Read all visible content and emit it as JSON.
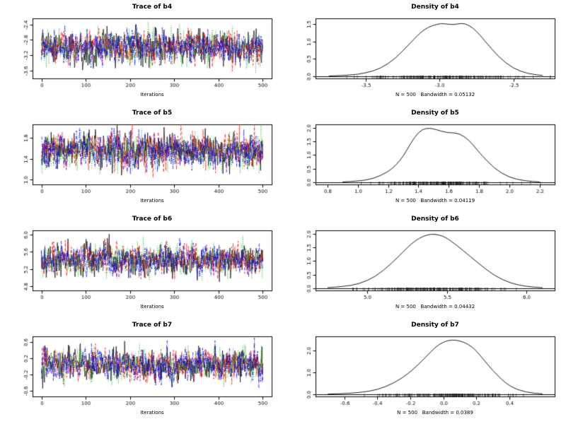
{
  "figure": {
    "background": "#ffffff",
    "foreground": "#000000",
    "description": "MCMC trace and density diagnostic plots for parameters b4-b7"
  },
  "chart_data": [
    {
      "type": "line",
      "kind": "trace",
      "parameter": "b4",
      "title": "Trace of b4",
      "xlabel": "Iterations",
      "xlim": [
        0,
        500
      ],
      "ylim": [
        -3.75,
        -2.3
      ],
      "xticks": [
        0,
        100,
        200,
        300,
        400,
        500
      ],
      "xtick_labels": [
        "0",
        "100",
        "200",
        "300",
        "400",
        "500"
      ],
      "yticks": [
        -3.6,
        -3.2,
        -2.8,
        -2.4
      ],
      "ytick_labels": [
        "-3.6",
        "-3.2",
        "-2.8",
        "-2.4"
      ],
      "n_iterations": 500,
      "series_mean": -3.0,
      "series_sd": 0.22,
      "chains": [
        {
          "color": "#000000",
          "dash": "solid"
        },
        {
          "color": "#ff0000",
          "dash": "dashed"
        },
        {
          "color": "#00b400",
          "dash": "dotted"
        },
        {
          "color": "#0000ff",
          "dash": "dotdash"
        }
      ]
    },
    {
      "type": "line",
      "kind": "density",
      "parameter": "b4",
      "title": "Density of b4",
      "footer": "N = 500   Bandwidth = 0.05132",
      "xlim": [
        -3.78,
        -2.28
      ],
      "ylim": [
        0,
        1.6
      ],
      "xticks": [
        -3.5,
        -3.0,
        -2.5
      ],
      "xtick_labels": [
        "-3.5",
        "-3.0",
        "-2.5"
      ],
      "yticks": [
        0,
        0.5,
        1.0,
        1.5
      ],
      "ytick_labels": [
        "0.0",
        "0.5",
        "1.0",
        "1.5"
      ],
      "curve": {
        "x": [
          -3.75,
          -3.6,
          -3.5,
          -3.4,
          -3.3,
          -3.2,
          -3.1,
          -3.0,
          -2.95,
          -2.9,
          -2.85,
          -2.8,
          -2.75,
          -2.7,
          -2.6,
          -2.5,
          -2.4,
          -2.3
        ],
        "y": [
          0.005,
          0.03,
          0.09,
          0.22,
          0.5,
          0.95,
          1.38,
          1.52,
          1.5,
          1.48,
          1.53,
          1.47,
          1.3,
          1.05,
          0.55,
          0.22,
          0.07,
          0.02
        ]
      },
      "rug": {
        "center": -2.98,
        "spread": 0.26,
        "n": 200
      }
    },
    {
      "type": "line",
      "kind": "trace",
      "parameter": "b5",
      "title": "Trace of b5",
      "xlabel": "Iterations",
      "xlim": [
        0,
        500
      ],
      "ylim": [
        0.95,
        2.02
      ],
      "xticks": [
        0,
        100,
        200,
        300,
        400,
        500
      ],
      "xtick_labels": [
        "0",
        "100",
        "200",
        "300",
        "400",
        "500"
      ],
      "yticks": [
        1.0,
        1.4,
        1.8
      ],
      "ytick_labels": [
        "1.0",
        "1.4",
        "1.8"
      ],
      "n_iterations": 500,
      "series_mean": 1.55,
      "series_sd": 0.17,
      "chains": [
        {
          "color": "#000000",
          "dash": "solid"
        },
        {
          "color": "#ff0000",
          "dash": "dashed"
        },
        {
          "color": "#00b400",
          "dash": "dotted"
        },
        {
          "color": "#0000ff",
          "dash": "dotdash"
        }
      ]
    },
    {
      "type": "line",
      "kind": "density",
      "parameter": "b5",
      "title": "Density of b5",
      "footer": "N = 500   Bandwidth = 0.04119",
      "xlim": [
        0.78,
        2.24
      ],
      "ylim": [
        0,
        2.05
      ],
      "xticks": [
        0.8,
        1.0,
        1.2,
        1.4,
        1.6,
        1.8,
        2.0,
        2.2
      ],
      "xtick_labels": [
        "0.8",
        "1.0",
        "1.2",
        "1.4",
        "1.6",
        "1.8",
        "2.0",
        "2.2"
      ],
      "yticks": [
        0,
        0.5,
        1.0,
        1.5,
        2.0
      ],
      "ytick_labels": [
        "0.0",
        "0.5",
        "1.0",
        "1.5",
        "2.0"
      ],
      "curve": {
        "x": [
          0.9,
          1.0,
          1.1,
          1.2,
          1.25,
          1.3,
          1.35,
          1.4,
          1.45,
          1.5,
          1.55,
          1.6,
          1.65,
          1.7,
          1.75,
          1.8,
          1.9,
          2.0,
          2.1,
          2.2
        ],
        "y": [
          0.01,
          0.04,
          0.12,
          0.38,
          0.62,
          0.95,
          1.45,
          1.85,
          2.0,
          1.97,
          1.88,
          1.82,
          1.82,
          1.7,
          1.45,
          1.1,
          0.5,
          0.17,
          0.05,
          0.01
        ]
      },
      "rug": {
        "center": 1.55,
        "spread": 0.2,
        "n": 200
      }
    },
    {
      "type": "line",
      "kind": "trace",
      "parameter": "b6",
      "title": "Trace of b6",
      "xlabel": "Iterations",
      "xlim": [
        0,
        500
      ],
      "ylim": [
        4.75,
        6.05
      ],
      "xticks": [
        0,
        100,
        200,
        300,
        400,
        500
      ],
      "xtick_labels": [
        "0",
        "100",
        "200",
        "300",
        "400",
        "500"
      ],
      "yticks": [
        4.8,
        5.2,
        5.6,
        6.0
      ],
      "ytick_labels": [
        "4.8",
        "5.2",
        "5.6",
        "6.0"
      ],
      "n_iterations": 500,
      "series_mean": 5.42,
      "series_sd": 0.18,
      "chains": [
        {
          "color": "#000000",
          "dash": "solid"
        },
        {
          "color": "#ff0000",
          "dash": "dashed"
        },
        {
          "color": "#00b400",
          "dash": "dotted"
        },
        {
          "color": "#0000ff",
          "dash": "dotdash"
        }
      ]
    },
    {
      "type": "line",
      "kind": "density",
      "parameter": "b6",
      "title": "Density of b6",
      "footer": "N = 500   Bandwidth = 0.04432",
      "xlim": [
        4.73,
        6.12
      ],
      "ylim": [
        0,
        2.05
      ],
      "xticks": [
        5.0,
        5.5,
        6.0
      ],
      "xtick_labels": [
        "5.0",
        "5.5",
        "6.0"
      ],
      "yticks": [
        0,
        0.5,
        1.0,
        1.5,
        2.0
      ],
      "ytick_labels": [
        "0.0",
        "0.5",
        "1.0",
        "1.5",
        "2.0"
      ],
      "curve": {
        "x": [
          4.75,
          4.85,
          4.95,
          5.05,
          5.15,
          5.25,
          5.3,
          5.35,
          5.4,
          5.45,
          5.5,
          5.6,
          5.7,
          5.8,
          5.9,
          6.0,
          6.1
        ],
        "y": [
          0.02,
          0.06,
          0.16,
          0.42,
          0.9,
          1.5,
          1.75,
          1.92,
          2.0,
          1.97,
          1.85,
          1.4,
          0.9,
          0.45,
          0.18,
          0.06,
          0.02
        ]
      },
      "rug": {
        "center": 5.42,
        "spread": 0.2,
        "n": 200
      }
    },
    {
      "type": "line",
      "kind": "trace",
      "parameter": "b7",
      "title": "Trace of b7",
      "xlabel": "Iterations",
      "xlim": [
        0,
        500
      ],
      "ylim": [
        -0.68,
        0.68
      ],
      "xticks": [
        0,
        100,
        200,
        300,
        400,
        500
      ],
      "xtick_labels": [
        "0",
        "100",
        "200",
        "300",
        "400",
        "500"
      ],
      "yticks": [
        -0.6,
        -0.2,
        0.2,
        0.6
      ],
      "ytick_labels": [
        "-0.6",
        "-0.2",
        "0.2",
        "0.6"
      ],
      "n_iterations": 500,
      "series_mean": 0.03,
      "series_sd": 0.2,
      "chains": [
        {
          "color": "#000000",
          "dash": "solid"
        },
        {
          "color": "#ff0000",
          "dash": "dashed"
        },
        {
          "color": "#00b400",
          "dash": "dotted"
        },
        {
          "color": "#0000ff",
          "dash": "dotdash"
        }
      ]
    },
    {
      "type": "line",
      "kind": "density",
      "parameter": "b7",
      "title": "Density of b7",
      "footer": "N = 500   Bandwidth = 0.0389",
      "xlim": [
        -0.72,
        0.62
      ],
      "ylim": [
        0,
        2.55
      ],
      "xticks": [
        -0.6,
        -0.4,
        -0.2,
        0.0,
        0.2,
        0.4
      ],
      "xtick_labels": [
        "-0.6",
        "-0.4",
        "-0.2",
        "0.0",
        "0.2",
        "0.4"
      ],
      "yticks": [
        0,
        1.0,
        2.0
      ],
      "ytick_labels": [
        "0.0",
        "1.0",
        "2.0"
      ],
      "curve": {
        "x": [
          -0.7,
          -0.6,
          -0.5,
          -0.4,
          -0.3,
          -0.2,
          -0.1,
          -0.05,
          0.0,
          0.05,
          0.1,
          0.15,
          0.2,
          0.3,
          0.4,
          0.5,
          0.6
        ],
        "y": [
          0.005,
          0.03,
          0.08,
          0.2,
          0.5,
          1.0,
          1.75,
          2.15,
          2.4,
          2.5,
          2.45,
          2.3,
          2.0,
          1.05,
          0.35,
          0.08,
          0.015
        ]
      },
      "rug": {
        "center": 0.05,
        "spread": 0.2,
        "n": 200
      }
    }
  ]
}
